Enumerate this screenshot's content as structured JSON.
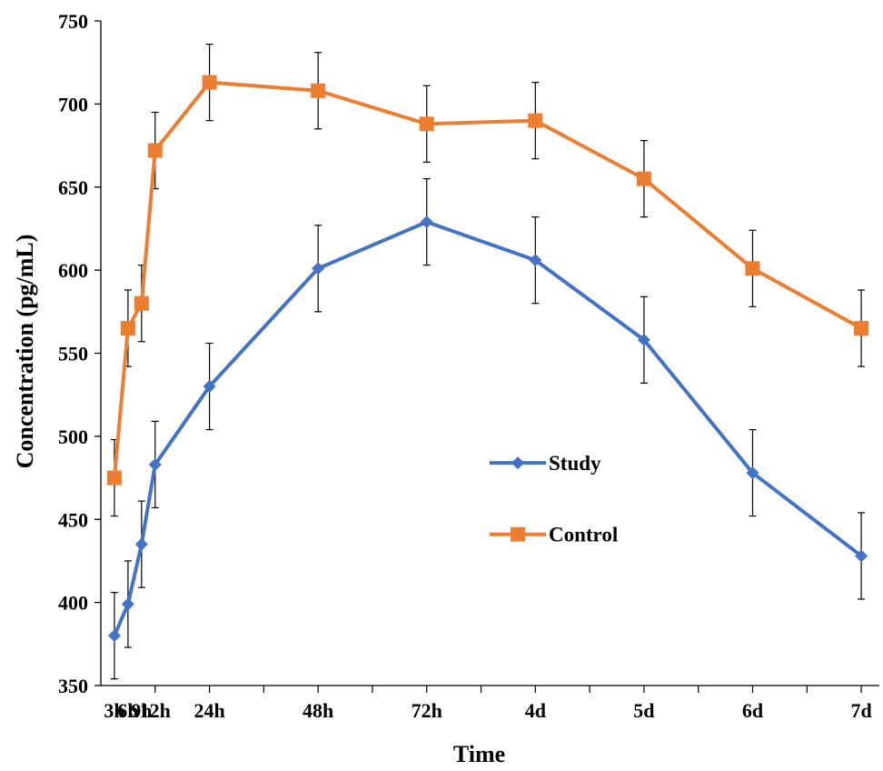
{
  "chart_data": {
    "type": "line",
    "title": "",
    "xlabel": "Time",
    "ylabel": "Concentration (pg/mL)",
    "categories": [
      "3h",
      "6h",
      "9h",
      "12h",
      "24h",
      "48h",
      "72h",
      "4d",
      "5d",
      "6d",
      "7d"
    ],
    "x_positions_hours": [
      3,
      6,
      9,
      12,
      24,
      48,
      72,
      96,
      120,
      144,
      168
    ],
    "ylim": [
      350,
      750
    ],
    "yticks": [
      350,
      400,
      450,
      500,
      550,
      600,
      650,
      700,
      750
    ],
    "grid": false,
    "legend_position": "center-right",
    "series": [
      {
        "name": "Study",
        "color": "#4472C4",
        "marker": "diamond",
        "values": [
          380,
          399,
          435,
          483,
          530,
          601,
          629,
          606,
          558,
          478,
          428
        ],
        "errors": [
          26,
          26,
          26,
          26,
          26,
          26,
          26,
          26,
          26,
          26,
          26
        ]
      },
      {
        "name": "Control",
        "color": "#ED7D31",
        "marker": "square",
        "values": [
          475,
          565,
          580,
          672,
          713,
          708,
          688,
          690,
          655,
          601,
          565
        ],
        "errors": [
          23,
          23,
          23,
          23,
          23,
          23,
          23,
          23,
          23,
          23,
          23
        ]
      }
    ]
  }
}
